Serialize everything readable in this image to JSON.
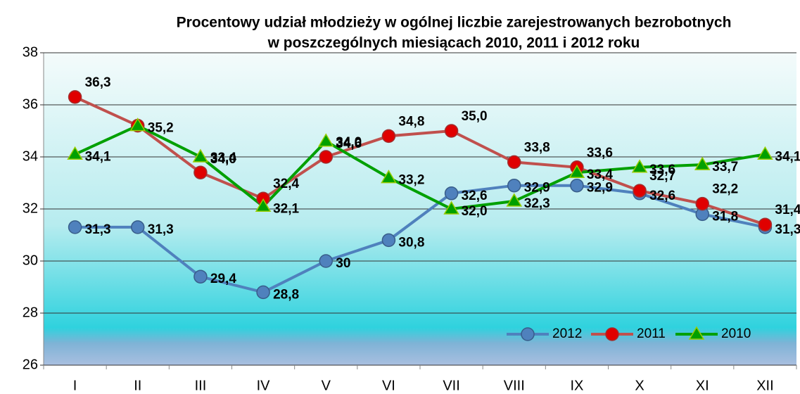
{
  "chart_data": {
    "type": "line",
    "title": [
      "Procentowy udział młodzieży w ogólnej liczbie zarejestrowanych bezrobotnych",
      "w poszczególnych miesiącach 2010, 2011 i 2012 roku"
    ],
    "categories": [
      "I",
      "II",
      "III",
      "IV",
      "V",
      "VI",
      "VII",
      "VIII",
      "IX",
      "X",
      "XI",
      "XII"
    ],
    "ylim": [
      26,
      38
    ],
    "yticks": [
      26,
      28,
      30,
      32,
      34,
      36,
      38
    ],
    "legend": "lower right",
    "series": [
      {
        "name": "2012",
        "color": "#4f81bd",
        "marker": "circle",
        "values": [
          31.3,
          31.3,
          29.4,
          28.8,
          30,
          30.8,
          32.6,
          32.9,
          32.9,
          32.6,
          31.8,
          31.3
        ],
        "value_labels": [
          "31,3",
          "31,3",
          "29,4",
          "28,8",
          "30",
          "30,8",
          "32,6",
          "32,9",
          "32,9",
          "32,6",
          "31,8",
          "31,3"
        ]
      },
      {
        "name": "2011",
        "color": "#c0504d",
        "marker": "circle",
        "values": [
          36.3,
          35.2,
          33.4,
          32.4,
          34.0,
          34.8,
          35.0,
          33.8,
          33.6,
          32.7,
          32.2,
          31.4
        ],
        "value_labels": [
          "36,3",
          null,
          "33,4",
          "32,4",
          "34,0",
          "34,8",
          "35,0",
          "33,8",
          "33,6",
          "32,7",
          "32,2",
          "31,4"
        ]
      },
      {
        "name": "2010",
        "color": "#00a000",
        "marker": "triangle",
        "values": [
          34.1,
          35.2,
          34.0,
          32.1,
          34.6,
          33.2,
          32.0,
          32.3,
          33.4,
          33.6,
          33.7,
          34.1
        ],
        "value_labels": [
          "34,1",
          "35,2",
          "34,0",
          "32,1",
          "34,6",
          "33,2",
          "32,0",
          "32,3",
          "33,4",
          "33,6",
          "33,7",
          "34,1"
        ]
      }
    ]
  }
}
